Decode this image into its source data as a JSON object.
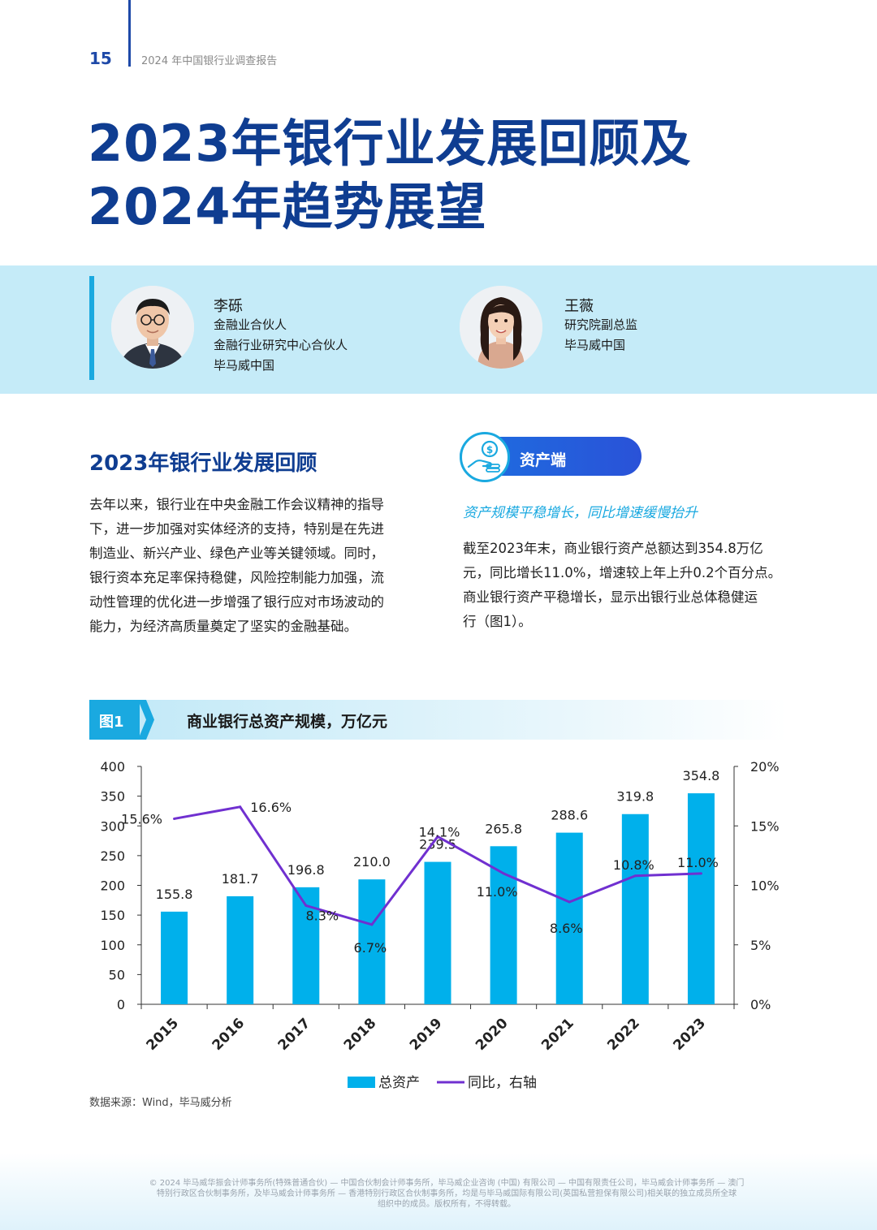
{
  "header": {
    "page_number": "15",
    "report_title": "2024 年中国银行业调查报告"
  },
  "title": {
    "line1": "2023年银行业发展回顾及",
    "line2": "2024年趋势展望"
  },
  "authors": [
    {
      "name": "李砾",
      "roles": [
        "金融业合伙人",
        "金融行业研究中心合伙人",
        "毕马威中国"
      ]
    },
    {
      "name": "王薇",
      "roles": [
        "研究院副总监",
        "毕马威中国"
      ]
    }
  ],
  "left_section": {
    "heading": "2023年银行业发展回顾",
    "lines": [
      "去年以来，银行业在中央金融工作会议精神的指导",
      "下，进一步加强对实体经济的支持，特别是在先进",
      "制造业、新兴产业、绿色产业等关键领域。同时，",
      "银行资本充足率保持稳健，风险控制能力加强，流",
      "动性管理的优化进一步增强了银行应对市场波动的",
      "能力，为经济高质量奠定了坚实的金融基础。"
    ]
  },
  "right_section": {
    "pill_label": "资产端",
    "icon": "money-hand-coins-icon",
    "subheading": "资产规模平稳增长，同比增速缓慢抬升",
    "lines": [
      "截至2023年末，商业银行资产总额达到354.8万亿",
      "元，同比增长11.0%，增速较上年上升0.2个百分点。",
      "商业银行资产平稳增长，显示出银行业总体稳健运",
      "行（图1）。"
    ]
  },
  "figure": {
    "label": "图1",
    "title": "商业银行总资产规模，万亿元",
    "source": "数据来源：Wind，毕马威分析"
  },
  "chart_data": {
    "type": "bar",
    "title": "商业银行总资产规模，万亿元",
    "categories": [
      "2015",
      "2016",
      "2017",
      "2018",
      "2019",
      "2020",
      "2021",
      "2022",
      "2023"
    ],
    "series": [
      {
        "name": "总资产",
        "type": "bar",
        "axis": "left",
        "color": "#00b0eb",
        "values": [
          155.8,
          181.7,
          196.8,
          210.0,
          239.5,
          265.8,
          288.6,
          319.8,
          354.8
        ],
        "labels": [
          "155.8",
          "181.7",
          "196.8",
          "210.0",
          "239.5",
          "265.8",
          "288.6",
          "319.8",
          "354.8"
        ]
      },
      {
        "name": "同比，右轴",
        "type": "line",
        "axis": "right",
        "color": "#7030d0",
        "values": [
          15.6,
          16.6,
          8.3,
          6.7,
          14.1,
          11.0,
          8.6,
          10.8,
          11.0
        ],
        "labels": [
          "15.6%",
          "16.6%",
          "8.3%",
          "6.7%",
          "14.1%",
          "11.0%",
          "8.6%",
          "10.8%",
          "11.0%"
        ]
      }
    ],
    "ylim_left": [
      0,
      400
    ],
    "yticks_left": [
      "0",
      "50",
      "100",
      "150",
      "200",
      "250",
      "300",
      "350",
      "400"
    ],
    "ylim_right": [
      0,
      20
    ],
    "yticks_right": [
      "0%",
      "5%",
      "10%",
      "15%",
      "20%"
    ],
    "legend_position": "bottom-center",
    "grid": false
  },
  "footer": {
    "line1": "© 2024 毕马威华振会计师事务所(特殊普通合伙) — 中国合伙制会计师事务所，毕马威企业咨询 (中国) 有限公司 — 中国有限责任公司，毕马威会计师事务所 — 澳门",
    "line2": "特别行政区合伙制事务所，及毕马威会计师事务所 — 香港特别行政区合伙制事务所，均是与毕马威国际有限公司(英国私营担保有限公司)相关联的独立成员所全球",
    "line3": "组织中的成员。版权所有，不得转载。"
  }
}
